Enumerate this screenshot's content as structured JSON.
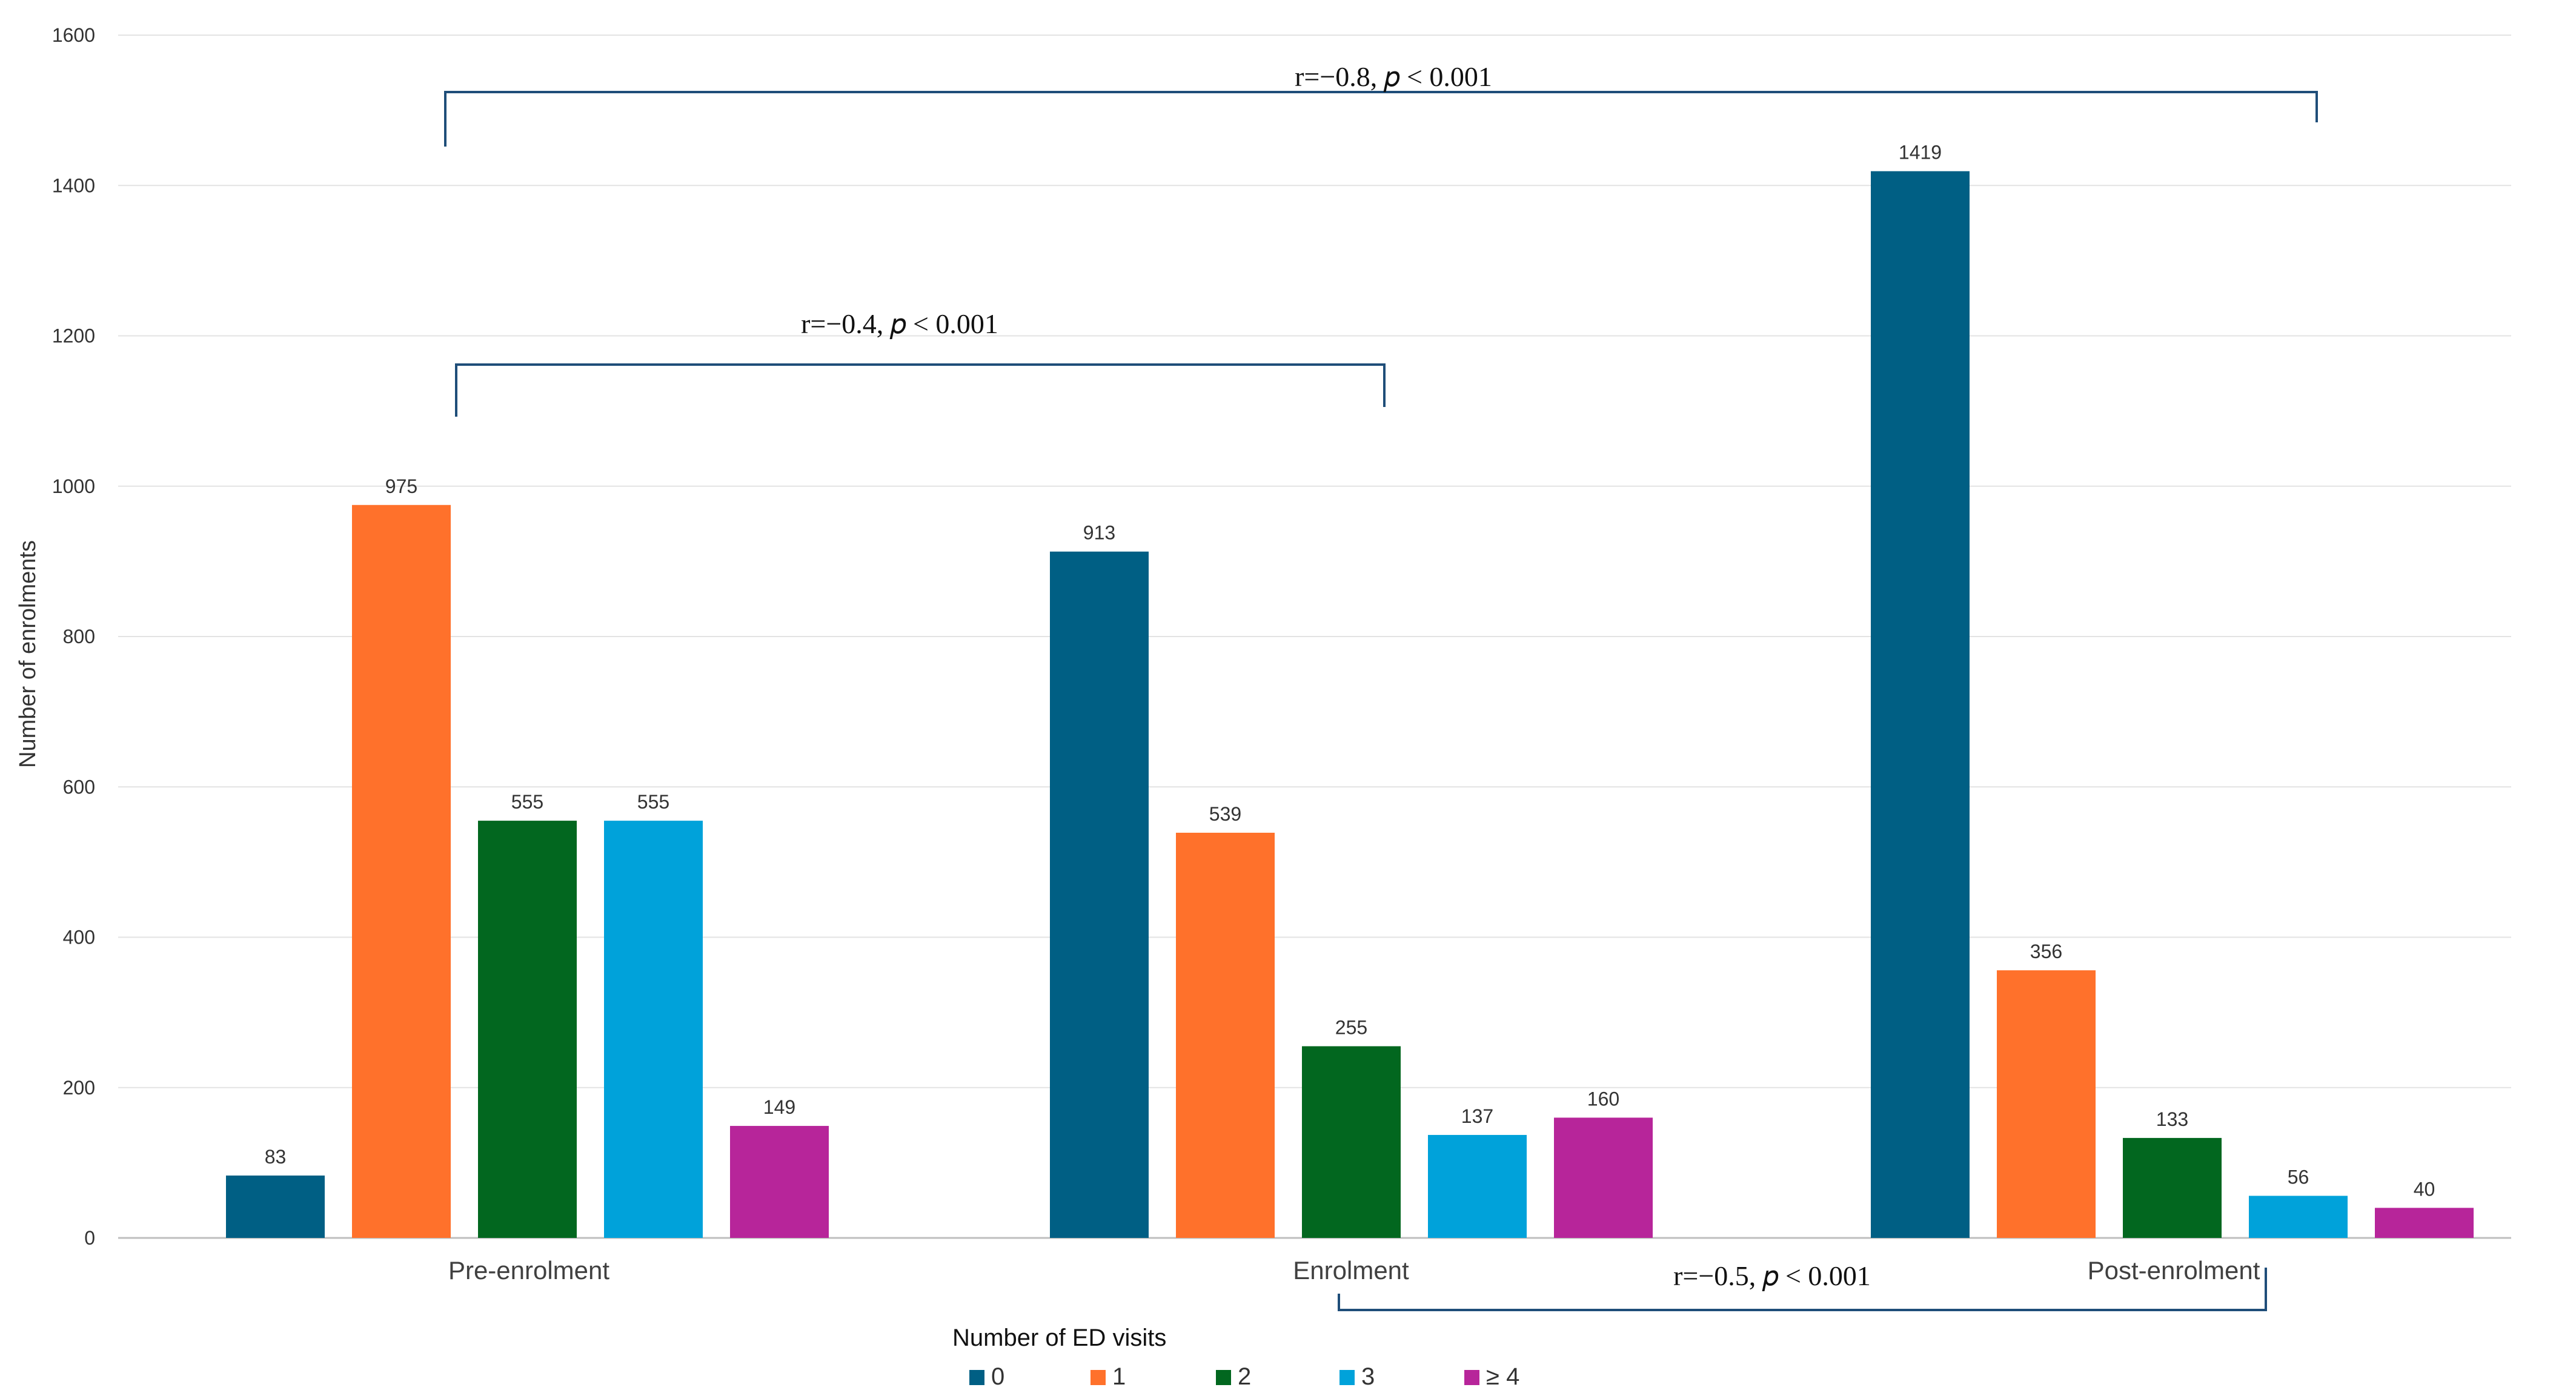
{
  "chart_data": {
    "type": "bar",
    "title": "",
    "xlabel": "",
    "ylabel": "Number of enrolments",
    "ylim": [
      0,
      1600
    ],
    "yticks": [
      0,
      200,
      400,
      600,
      800,
      1000,
      1200,
      1400,
      1600
    ],
    "grid": true,
    "categories": [
      "Pre-enrolment",
      "Enrolment",
      "Post-enrolment"
    ],
    "legend": {
      "title": "Number of ED  visits",
      "position": "bottom-center"
    },
    "series": [
      {
        "name": "0",
        "color": "#005f84",
        "values": [
          83,
          913,
          1419
        ]
      },
      {
        "name": "1",
        "color": "#ff712b",
        "values": [
          975,
          539,
          356
        ]
      },
      {
        "name": "2",
        "color": "#02671f",
        "values": [
          555,
          255,
          133
        ]
      },
      {
        "name": "3",
        "color": "#00a2da",
        "values": [
          555,
          137,
          56
        ]
      },
      {
        "name": "≥ 4",
        "color": "#b7259a",
        "values": [
          149,
          160,
          40
        ]
      }
    ],
    "annotations": [
      {
        "text": "r=−0.8, 𝑝 < 0.001",
        "from": "Pre-enrolment",
        "to": "Post-enrolment"
      },
      {
        "text": "r=−0.4, 𝑝 < 0.001",
        "from": "Pre-enrolment",
        "to": "Enrolment"
      },
      {
        "text": "r=−0.5, 𝑝 < 0.001",
        "from": "Enrolment",
        "to": "Post-enrolment"
      }
    ],
    "bracket_color": "#1f4e79"
  }
}
